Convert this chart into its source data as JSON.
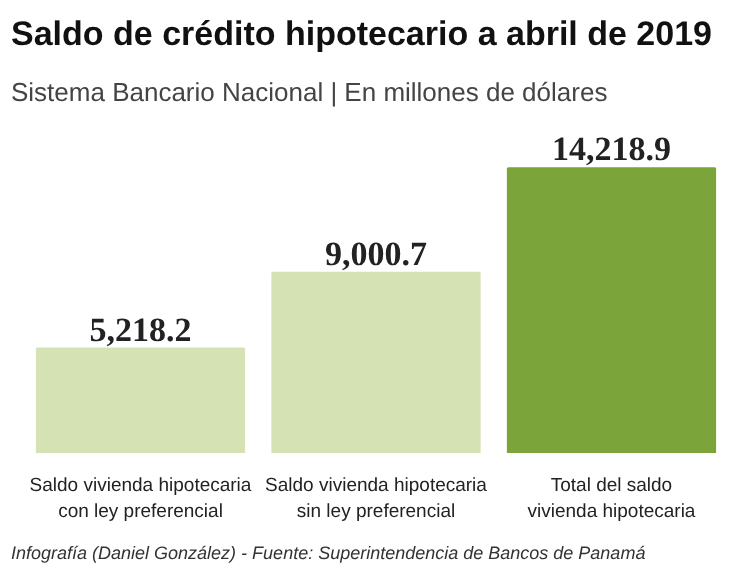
{
  "chart_data": {
    "type": "bar",
    "title": "Saldo de crédito hipotecario a abril de 2019",
    "subtitle": "Sistema Bancario Nacional | En millones de dólares",
    "categories": [
      "Saldo vivienda hipotecaria\ncon ley preferencial",
      "Saldo vivienda hipotecaria\nsin ley preferencial",
      "Total del saldo\nvivienda hipotecaria"
    ],
    "values": [
      5218.2,
      9000.7,
      14218.9
    ],
    "colors": [
      "#d5e2b3",
      "#d5e2b3",
      "#7ba43a"
    ],
    "value_labels": [
      "5,218.2",
      "9,000.7",
      "14,218.9"
    ],
    "annotations": [
      "Infografía (Daniel González) - Fuente: Superintendencia de Bancos de Panamá"
    ],
    "grid": false
  }
}
